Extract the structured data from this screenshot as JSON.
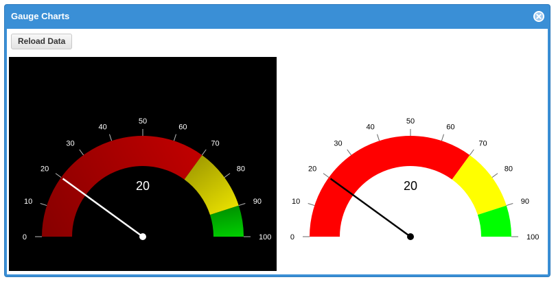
{
  "window": {
    "title": "Gauge Charts",
    "close_icon": "close-circle-icon"
  },
  "toolbar": {
    "reload_label": "Reload Data"
  },
  "chart_data": [
    {
      "type": "gauge",
      "theme": "dark",
      "min": 0,
      "max": 100,
      "value": 20,
      "value_label": "20",
      "ticks": [
        "0",
        "10",
        "20",
        "30",
        "40",
        "50",
        "60",
        "70",
        "80",
        "90",
        "100"
      ],
      "bands": [
        {
          "from": 0,
          "to": 70,
          "color": "#c00000"
        },
        {
          "from": 70,
          "to": 90,
          "color": "#e8e000"
        },
        {
          "from": 90,
          "to": 100,
          "color": "#00d000"
        }
      ],
      "colors": {
        "background": "#000000",
        "text": "#ffffff",
        "needle": "#ffffff"
      }
    },
    {
      "type": "gauge",
      "theme": "light",
      "min": 0,
      "max": 100,
      "value": 20,
      "value_label": "20",
      "ticks": [
        "0",
        "10",
        "20",
        "30",
        "40",
        "50",
        "60",
        "70",
        "80",
        "90",
        "100"
      ],
      "bands": [
        {
          "from": 0,
          "to": 70,
          "color": "#ff0000"
        },
        {
          "from": 70,
          "to": 90,
          "color": "#ffff00"
        },
        {
          "from": 90,
          "to": 100,
          "color": "#00ff00"
        }
      ],
      "colors": {
        "background": "#ffffff",
        "text": "#000000",
        "needle": "#000000"
      }
    }
  ]
}
